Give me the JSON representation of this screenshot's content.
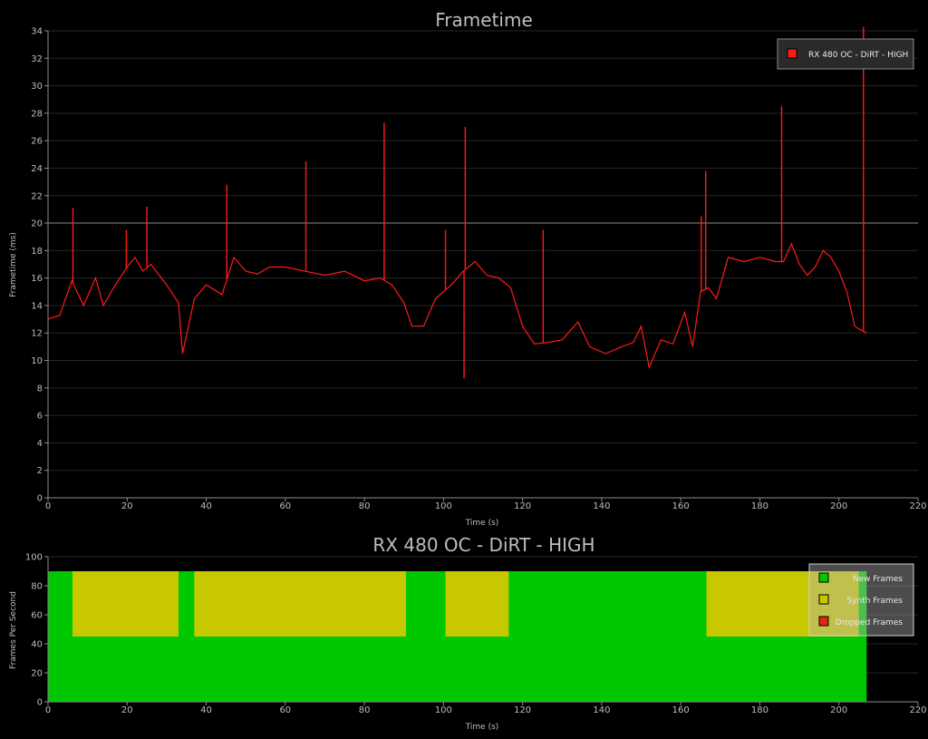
{
  "colors": {
    "frametime": "#ff1a1a",
    "new_frames": "#00c800",
    "synth_frames": "#c8c800",
    "dropped_frames": "#e02810"
  },
  "chart_data": [
    {
      "type": "line",
      "title": "Frametime",
      "xlabel": "Time (s)",
      "ylabel": "Frametime (ms)",
      "xlim": [
        0,
        220
      ],
      "ylim": [
        0,
        34
      ],
      "xticks": [
        "0",
        "20",
        "40",
        "60",
        "80",
        "100",
        "120",
        "140",
        "160",
        "180",
        "200",
        "220"
      ],
      "yticks": [
        "0",
        "2",
        "4",
        "6",
        "8",
        "10",
        "12",
        "14",
        "16",
        "18",
        "20",
        "22",
        "24",
        "26",
        "28",
        "30",
        "32",
        "34"
      ],
      "reference_line_y": 20,
      "legend": {
        "position": "top-right",
        "entries": [
          "RX 480 OC - DiRT - HIGH"
        ]
      },
      "series": [
        {
          "name": "RX 480 OC - DiRT - HIGH",
          "x": [
            0,
            3,
            6,
            9,
            12,
            14,
            17,
            20,
            22,
            24,
            26,
            30,
            33,
            34,
            37,
            40,
            44,
            47,
            50,
            53,
            56,
            60,
            65,
            70,
            75,
            80,
            84,
            87,
            90,
            92,
            95,
            98,
            102,
            105,
            108,
            111,
            114,
            117,
            120,
            123,
            126,
            130,
            134,
            137,
            141,
            145,
            148,
            150,
            152,
            155,
            158,
            161,
            163,
            165,
            167,
            169,
            172,
            176,
            180,
            184,
            186,
            188,
            190,
            192,
            194,
            196,
            198,
            200,
            202,
            204,
            205,
            207
          ],
          "y": [
            13,
            13.3,
            15.8,
            14,
            16,
            14,
            15.5,
            16.8,
            17.5,
            16.5,
            17,
            15.5,
            14.2,
            10.5,
            14.5,
            15.5,
            14.8,
            17.5,
            16.5,
            16.3,
            16.8,
            16.8,
            16.5,
            16.2,
            16.5,
            15.8,
            16,
            15.5,
            14.2,
            12.5,
            12.5,
            14.5,
            15.5,
            16.5,
            17.2,
            16.2,
            16,
            15.3,
            12.5,
            11.2,
            11.3,
            11.5,
            12.8,
            11,
            10.5,
            11,
            11.3,
            12.5,
            9.5,
            11.5,
            11.2,
            13.5,
            11,
            15,
            15.3,
            14.5,
            17.5,
            17.2,
            17.5,
            17.2,
            17.2,
            18.5,
            17,
            16.2,
            16.8,
            18,
            17.5,
            16.5,
            15,
            12.5,
            12.3,
            12
          ]
        }
      ],
      "spikes": [
        {
          "x": 6.3,
          "y": 21.1
        },
        {
          "x": 19.8,
          "y": 19.5
        },
        {
          "x": 25,
          "y": 21.2
        },
        {
          "x": 45.2,
          "y": 22.8
        },
        {
          "x": 65.2,
          "y": 24.5
        },
        {
          "x": 85,
          "y": 27.3
        },
        {
          "x": 100.5,
          "y": 19.5
        },
        {
          "x": 105.2,
          "y": 8.7
        },
        {
          "x": 105.5,
          "y": 27
        },
        {
          "x": 125.2,
          "y": 19.5
        },
        {
          "x": 165.2,
          "y": 20.5
        },
        {
          "x": 166.3,
          "y": 23.8
        },
        {
          "x": 185.5,
          "y": 28.5
        },
        {
          "x": 206.2,
          "y": 34.3
        }
      ]
    },
    {
      "type": "area",
      "title": "RX 480 OC - DiRT - HIGH",
      "xlabel": "Time (s)",
      "ylabel": "Frames Per Second",
      "xlim": [
        0,
        220
      ],
      "ylim": [
        0,
        100
      ],
      "xticks": [
        "0",
        "20",
        "40",
        "60",
        "80",
        "100",
        "120",
        "140",
        "160",
        "180",
        "200",
        "220"
      ],
      "yticks": [
        "0",
        "20",
        "40",
        "60",
        "80",
        "100"
      ],
      "legend": {
        "position": "top-right",
        "entries": [
          "New Frames",
          "Synth Frames",
          "Dropped Frames"
        ]
      },
      "series": [
        {
          "name": "New Frames",
          "x": [
            0,
            207
          ],
          "values": [
            90,
            90
          ]
        },
        {
          "name": "Synth Frames",
          "segments": [
            {
              "x_start": 6.2,
              "x_end": 33,
              "y_low": 45,
              "y_high": 90
            },
            {
              "x_start": 37,
              "x_end": 90.5,
              "y_low": 45,
              "y_high": 90
            },
            {
              "x_start": 100.5,
              "x_end": 116.5,
              "y_low": 45,
              "y_high": 90
            },
            {
              "x_start": 166.5,
              "x_end": 205,
              "y_low": 45,
              "y_high": 90
            }
          ]
        },
        {
          "name": "Dropped Frames",
          "values": []
        }
      ]
    }
  ]
}
